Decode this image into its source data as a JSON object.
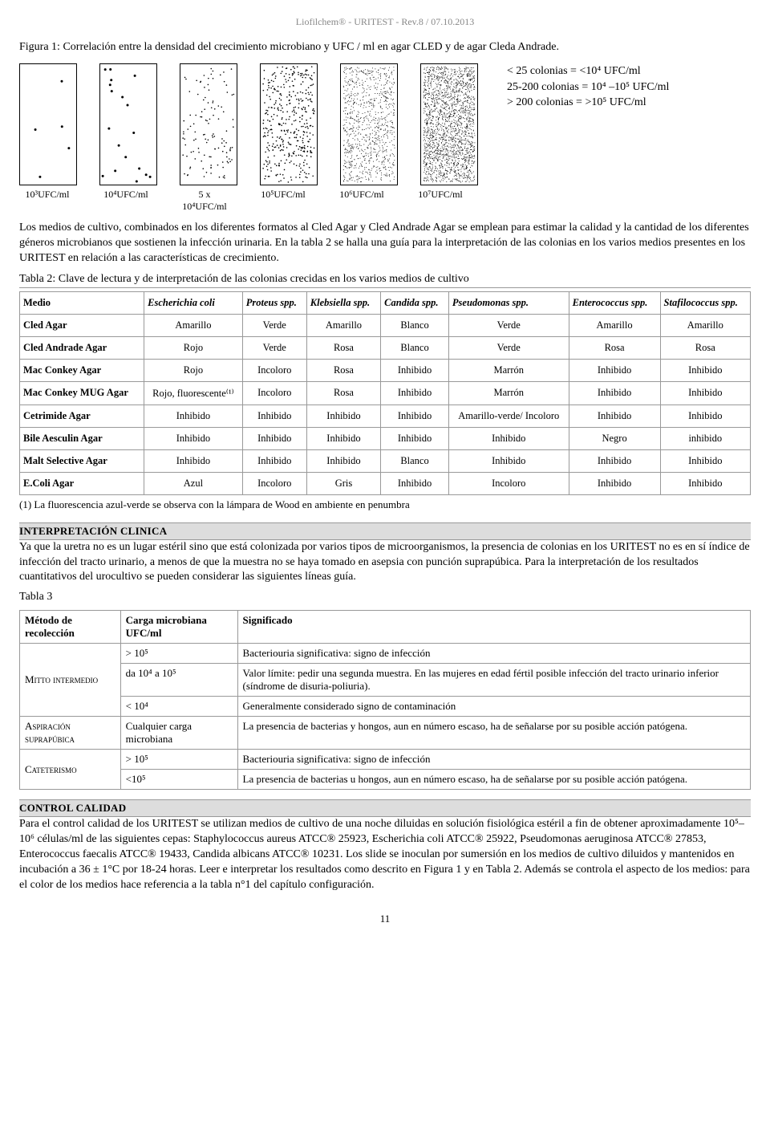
{
  "header": "Liofilchem® - URITEST - Rev.8 / 07.10.2013",
  "fig1_title": "Figura 1: Correlación entre la densidad del crecimiento microbiano y UFC / ml en agar CLED y de agar Cleda Andrade.",
  "density_legend": {
    "l1": "< 25 colonias    = <10⁴ UFC/ml",
    "l2": "25-200 colonias = 10⁴ –10⁵ UFC/ml",
    "l3": "> 200 colonias   = >10⁵ UFC/ml"
  },
  "density_labels": [
    "10³UFC/ml",
    "10⁴UFC/ml",
    "5 x 10⁴UFC/ml",
    "10⁵UFC/ml",
    "10⁶UFC/ml",
    "10⁷UFC/ml"
  ],
  "para1": "Los medios de cultivo, combinados en los diferentes formatos al Cled Agar y Cled Andrade Agar se emplean para estimar la calidad y la cantidad de los diferentes géneros microbianos que sostienen la infección urinaria. En la tabla 2 se halla una guía para la interpretación de las colonias en los varios medios presentes en los URITEST en relación a las características de crecimiento.",
  "t2_caption": "Tabla 2: Clave de lectura y de interpretación de las colonias crecidas en los varios medios de cultivo",
  "t2": {
    "headers": [
      "Medio",
      "Escherichia coli",
      "Proteus spp.",
      "Klebsiella spp.",
      "Candida spp.",
      "Pseudomonas spp.",
      "Enterococcus spp.",
      "Stafilococcus spp."
    ],
    "rows": [
      [
        "Cled Agar",
        "Amarillo",
        "Verde",
        "Amarillo",
        "Blanco",
        "Verde",
        "Amarillo",
        "Amarillo"
      ],
      [
        "Cled Andrade Agar",
        "Rojo",
        "Verde",
        "Rosa",
        "Blanco",
        "Verde",
        "Rosa",
        "Rosa"
      ],
      [
        "Mac Conkey Agar",
        "Rojo",
        "Incoloro",
        "Rosa",
        "Inhibido",
        "Marrón",
        "Inhibido",
        "Inhibido"
      ],
      [
        "Mac Conkey MUG Agar",
        "Rojo, fluorescente⁽¹⁾",
        "Incoloro",
        "Rosa",
        "Inhibido",
        "Marrón",
        "Inhibido",
        "Inhibido"
      ],
      [
        "Cetrimide Agar",
        "Inhibido",
        "Inhibido",
        "Inhibido",
        "Inhibido",
        "Amarillo-verde/ Incoloro",
        "Inhibido",
        "Inhibido"
      ],
      [
        "Bile Aesculin Agar",
        "Inhibido",
        "Inhibido",
        "Inhibido",
        "Inhibido",
        "Inhibido",
        "Negro",
        "inhibido"
      ],
      [
        "Malt Selective Agar",
        "Inhibido",
        "Inhibido",
        "Inhibido",
        "Blanco",
        "Inhibido",
        "Inhibido",
        "Inhibido"
      ],
      [
        "E.Coli Agar",
        "Azul",
        "Incoloro",
        "Gris",
        "Inhibido",
        "Incoloro",
        "Inhibido",
        "Inhibido"
      ]
    ]
  },
  "t2_footnote": "(1) La fluorescencia azul-verde se observa con la lámpara de Wood en ambiente en penumbra",
  "sec_interp_hdr": "INTERPRETACIÓN CLINICA",
  "sec_interp_text": "Ya que la uretra no es un lugar estéril sino que está colonizada por varios tipos de microorganismos, la presencia de colonias en los URITEST no es en sí índice de infección del tracto urinario, a menos de que la muestra no se haya tomado en asepsia con punción suprapúbica. Para la interpretación de los resultados cuantitativos del urocultivo se pueden considerar las siguientes líneas guía.",
  "t3_caption": "Tabla 3",
  "t3": {
    "headers": [
      "Método de recolección",
      "Carga microbiana UFC/ml",
      "Significado"
    ],
    "rows": [
      {
        "method": "Mitto intermedio",
        "span": 3,
        "cells": [
          [
            "> 10⁵",
            "Bacteriouria significativa: signo de infección"
          ],
          [
            "da 10⁴ a 10⁵",
            "Valor límite: pedir una segunda muestra.\nEn las mujeres en edad fértil posible infección del tracto urinario inferior (síndrome de disuria-poliuria)."
          ],
          [
            "< 10⁴",
            "Generalmente considerado signo de contaminación"
          ]
        ]
      },
      {
        "method": "Aspiración suprapúbica",
        "span": 1,
        "cells": [
          [
            "Cualquier carga microbiana",
            "La presencia de bacterias y hongos, aun en número escaso, ha de señalarse por su posible acción patógena."
          ]
        ]
      },
      {
        "method": "Cateterismo",
        "span": 2,
        "cells": [
          [
            "> 10⁵",
            "Bacteriouria significativa: signo de infección"
          ],
          [
            "<10⁵",
            "La presencia de bacterias u hongos, aun en número escaso, ha de señalarse por su posible acción patógena."
          ]
        ]
      }
    ]
  },
  "sec_calidad_hdr": "CONTROL CALIDAD",
  "sec_calidad_text": "Para el control calidad de los URITEST se utilizan medios de cultivo de una noche diluidas en solución fisiológica estéril a fin de obtener aproximadamente 10⁵–10⁶ células/ml de las siguientes cepas: Staphylococcus aureus ATCC® 25923, Escherichia coli ATCC® 25922, Pseudomonas aeruginosa ATCC® 27853, Enterococcus faecalis ATCC® 19433, Candida albicans ATCC® 10231. Los slide se inoculan por sumersión en los medios de cultivo diluidos y mantenidos en incubación a 36 ± 1°C por 18-24 horas. Leer e interpretar los resultados como descrito en Figura 1 y en Tabla 2. Además se controla el aspecto de los medios: para el color de los medios hace referencia a la tabla n°1 del capítulo configuración.",
  "page_num": "11",
  "density_svgs": {
    "dot_color": "#000000",
    "counts": [
      5,
      18,
      120,
      400,
      900,
      2000
    ]
  }
}
